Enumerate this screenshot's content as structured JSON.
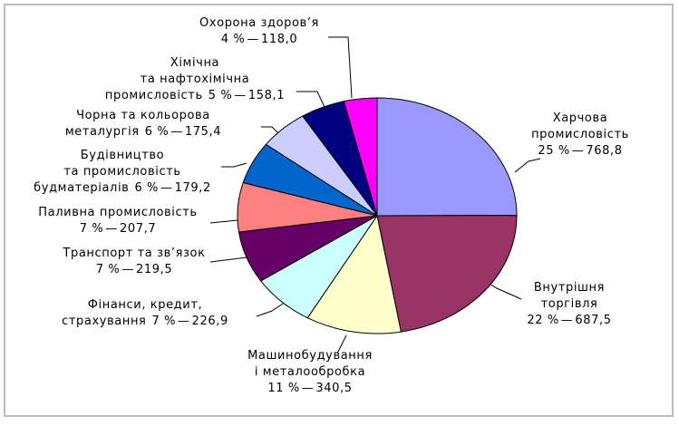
{
  "chart_data": {
    "type": "pie",
    "categories": [
      [
        "Харчова",
        "промисловість"
      ],
      [
        "Внутрішня",
        "торгівля"
      ],
      [
        "Машинобудування",
        "і металообробка"
      ],
      [
        "Фінанси, кредит,",
        "страхування"
      ],
      [
        "Транспорт та зв’язок"
      ],
      [
        "Паливна промисловість"
      ],
      [
        "Будівництво",
        "та промисловість",
        "будматеріалів"
      ],
      [
        "Чорна та кольорова",
        "металургія"
      ],
      [
        "Хімічна",
        "та нафтохімічна",
        "промисловість"
      ],
      [
        "Охорона здоров’я"
      ]
    ],
    "values": [
      768.8,
      687.5,
      340.5,
      226.9,
      219.5,
      207.7,
      179.2,
      175.4,
      158.1,
      118.0
    ],
    "value_labels": [
      "768,8",
      "687,5",
      "340,5",
      "226,9",
      "219,5",
      "207,7",
      "179,2",
      "175,4",
      "158,1",
      "118,0"
    ],
    "percents": [
      25,
      22,
      11,
      7,
      7,
      7,
      6,
      6,
      5,
      4
    ],
    "percent_labels": [
      "25 %",
      "22 %",
      "11 %",
      "7 %",
      "7 %",
      "7 %",
      "6 %",
      "6 %",
      "5 %",
      "4 %"
    ],
    "separator": "—",
    "colors": [
      "#9999ff",
      "#993366",
      "#ffffcc",
      "#ccffff",
      "#660066",
      "#ff8080",
      "#0066cc",
      "#ccccff",
      "#000080",
      "#ff00ff"
    ]
  }
}
